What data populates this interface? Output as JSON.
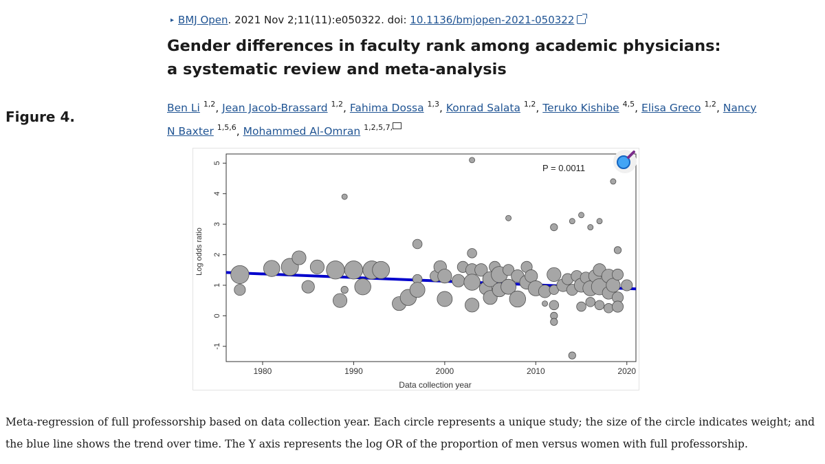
{
  "figure_label": "Figure 4.",
  "citation": {
    "journal": "BMJ Open",
    "details": ". 2021 Nov 2;11(11):e050322. doi: ",
    "doi": "10.1136/bmjopen-2021-050322"
  },
  "article_title": "Gender differences in faculty rank among academic physicians: a systematic review and meta-analysis",
  "authors": [
    {
      "name": "Ben Li",
      "aff": "1,2",
      "sep": ", "
    },
    {
      "name": "Jean Jacob-Brassard",
      "aff": "1,2",
      "sep": ", "
    },
    {
      "name": "Fahima Dossa",
      "aff": "1,3",
      "sep": ", "
    },
    {
      "name": "Konrad Salata",
      "aff": "1,2",
      "sep": ", "
    },
    {
      "name": "Teruko Kishibe",
      "aff": "4,5",
      "sep": ", "
    },
    {
      "name": "Elisa Greco",
      "aff": "1,2",
      "sep": ", "
    },
    {
      "name": "Nancy N Baxter",
      "aff": "1,5,6",
      "sep": ", "
    },
    {
      "name": "Mohammed Al-Omran",
      "aff": "1,2,5,7,",
      "sep": ""
    }
  ],
  "caption": "Meta-regression of full professorship based on data collection year. Each circle represents a unique study; the size of the circle indicates weight; and the blue line shows the trend over time. The Y axis represents the log OR of the proportion of men versus women with full professorship.",
  "colors": {
    "link": "#205493",
    "trend": "#0000cc",
    "bubble_fill": "#a6a6a6",
    "bubble_stroke": "#505050"
  },
  "chart_data": {
    "type": "scatter",
    "xlabel": "Data collection year",
    "ylabel": "Log odds ratio",
    "annotation": "P = 0.0011",
    "xlim": [
      1976,
      2021
    ],
    "ylim": [
      -1.5,
      5.3
    ],
    "xticks": [
      1980,
      1990,
      2000,
      2010,
      2020
    ],
    "yticks": [
      -1,
      0,
      1,
      2,
      3,
      4,
      5
    ],
    "trend_line": {
      "x": [
        1976,
        2021
      ],
      "y": [
        1.42,
        0.88
      ]
    },
    "points": [
      {
        "x": 1977.5,
        "y": 1.35,
        "w": 9
      },
      {
        "x": 1977.5,
        "y": 0.85,
        "w": 3
      },
      {
        "x": 1981,
        "y": 1.55,
        "w": 7
      },
      {
        "x": 1983,
        "y": 1.6,
        "w": 8
      },
      {
        "x": 1984,
        "y": 1.9,
        "w": 5
      },
      {
        "x": 1985,
        "y": 0.95,
        "w": 4
      },
      {
        "x": 1986,
        "y": 1.6,
        "w": 5
      },
      {
        "x": 1988,
        "y": 1.5,
        "w": 9
      },
      {
        "x": 1988.5,
        "y": 0.5,
        "w": 5
      },
      {
        "x": 1989,
        "y": 3.9,
        "w": 0.5
      },
      {
        "x": 1989,
        "y": 0.85,
        "w": 1
      },
      {
        "x": 1990,
        "y": 1.5,
        "w": 9
      },
      {
        "x": 1991,
        "y": 0.95,
        "w": 7
      },
      {
        "x": 1992,
        "y": 1.5,
        "w": 9
      },
      {
        "x": 1993,
        "y": 1.5,
        "w": 8
      },
      {
        "x": 1995,
        "y": 0.4,
        "w": 5
      },
      {
        "x": 1996,
        "y": 0.6,
        "w": 7
      },
      {
        "x": 1997,
        "y": 2.35,
        "w": 2
      },
      {
        "x": 1997,
        "y": 1.2,
        "w": 2
      },
      {
        "x": 1997,
        "y": 0.85,
        "w": 6
      },
      {
        "x": 1999,
        "y": 1.3,
        "w": 3
      },
      {
        "x": 1999.5,
        "y": 1.6,
        "w": 4
      },
      {
        "x": 2000,
        "y": 1.3,
        "w": 5
      },
      {
        "x": 2000,
        "y": 0.55,
        "w": 6
      },
      {
        "x": 2001.5,
        "y": 1.15,
        "w": 4
      },
      {
        "x": 2002,
        "y": 1.6,
        "w": 3
      },
      {
        "x": 2003,
        "y": 5.1,
        "w": 0.5
      },
      {
        "x": 2003,
        "y": 2.05,
        "w": 2
      },
      {
        "x": 2003,
        "y": 1.5,
        "w": 4
      },
      {
        "x": 2003,
        "y": 1.1,
        "w": 7
      },
      {
        "x": 2003,
        "y": 0.35,
        "w": 5
      },
      {
        "x": 2004,
        "y": 1.5,
        "w": 4
      },
      {
        "x": 2004.5,
        "y": 0.9,
        "w": 4
      },
      {
        "x": 2005,
        "y": 0.6,
        "w": 5
      },
      {
        "x": 2005,
        "y": 1.2,
        "w": 6
      },
      {
        "x": 2005.5,
        "y": 1.6,
        "w": 3
      },
      {
        "x": 2006,
        "y": 1.35,
        "w": 7
      },
      {
        "x": 2006,
        "y": 0.85,
        "w": 5
      },
      {
        "x": 2007,
        "y": 3.2,
        "w": 0.5
      },
      {
        "x": 2007,
        "y": 1.5,
        "w": 3
      },
      {
        "x": 2007,
        "y": 0.95,
        "w": 6
      },
      {
        "x": 2008,
        "y": 1.3,
        "w": 4
      },
      {
        "x": 2008,
        "y": 0.55,
        "w": 7
      },
      {
        "x": 2009,
        "y": 1.6,
        "w": 3
      },
      {
        "x": 2009,
        "y": 1.1,
        "w": 5
      },
      {
        "x": 2009.5,
        "y": 1.3,
        "w": 4
      },
      {
        "x": 2010,
        "y": 0.9,
        "w": 6
      },
      {
        "x": 2011,
        "y": 0.8,
        "w": 4
      },
      {
        "x": 2011,
        "y": 0.4,
        "w": 0.5
      },
      {
        "x": 2012,
        "y": 2.9,
        "w": 1
      },
      {
        "x": 2012,
        "y": 1.35,
        "w": 5
      },
      {
        "x": 2012,
        "y": 0.85,
        "w": 2
      },
      {
        "x": 2012,
        "y": 0.35,
        "w": 2
      },
      {
        "x": 2012,
        "y": 0.0,
        "w": 1
      },
      {
        "x": 2012,
        "y": -0.2,
        "w": 1
      },
      {
        "x": 2013,
        "y": 1.0,
        "w": 4
      },
      {
        "x": 2013.5,
        "y": 1.2,
        "w": 3
      },
      {
        "x": 2014,
        "y": 3.1,
        "w": 0.5
      },
      {
        "x": 2014,
        "y": -1.3,
        "w": 1
      },
      {
        "x": 2014,
        "y": 0.85,
        "w": 3
      },
      {
        "x": 2014.5,
        "y": 1.3,
        "w": 3
      },
      {
        "x": 2015,
        "y": 3.3,
        "w": 0.5
      },
      {
        "x": 2015,
        "y": 1.0,
        "w": 5
      },
      {
        "x": 2015,
        "y": 0.3,
        "w": 2
      },
      {
        "x": 2015.5,
        "y": 1.25,
        "w": 3
      },
      {
        "x": 2016,
        "y": 2.9,
        "w": 0.5
      },
      {
        "x": 2016,
        "y": 0.9,
        "w": 6
      },
      {
        "x": 2016,
        "y": 0.45,
        "w": 2
      },
      {
        "x": 2016.5,
        "y": 1.3,
        "w": 4
      },
      {
        "x": 2017,
        "y": 3.1,
        "w": 0.5
      },
      {
        "x": 2017,
        "y": 1.5,
        "w": 4
      },
      {
        "x": 2017,
        "y": 0.95,
        "w": 7
      },
      {
        "x": 2017,
        "y": 0.35,
        "w": 2
      },
      {
        "x": 2018,
        "y": 1.3,
        "w": 5
      },
      {
        "x": 2018,
        "y": 0.75,
        "w": 4
      },
      {
        "x": 2018,
        "y": 0.25,
        "w": 2
      },
      {
        "x": 2018.5,
        "y": 4.4,
        "w": 0.5
      },
      {
        "x": 2018.5,
        "y": 1.0,
        "w": 5
      },
      {
        "x": 2019,
        "y": 2.15,
        "w": 1
      },
      {
        "x": 2019,
        "y": 1.35,
        "w": 3
      },
      {
        "x": 2019,
        "y": 0.6,
        "w": 3
      },
      {
        "x": 2019,
        "y": 0.3,
        "w": 3
      },
      {
        "x": 2020,
        "y": 1.0,
        "w": 3
      }
    ]
  }
}
